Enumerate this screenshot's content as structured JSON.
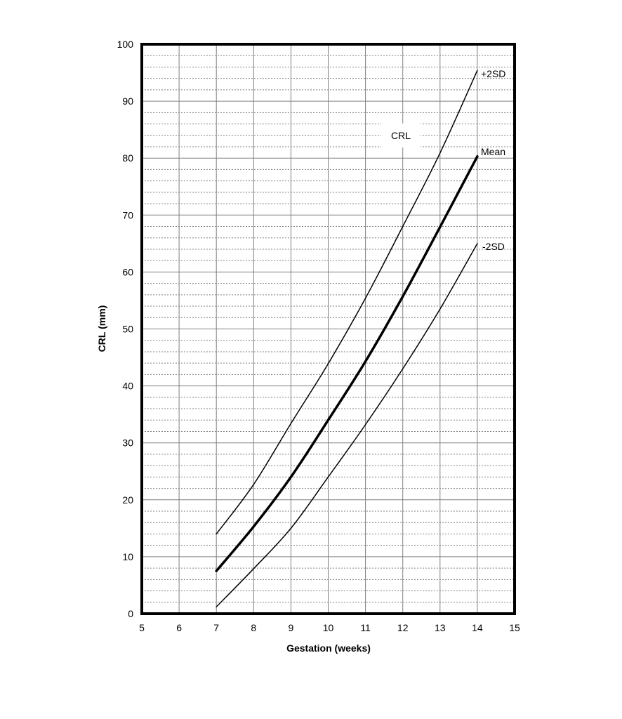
{
  "chart_data": {
    "type": "line",
    "title": "CRL",
    "xlabel": "Gestation (weeks)",
    "ylabel": "CRL (mm)",
    "xlim": [
      5,
      15
    ],
    "ylim": [
      0,
      100
    ],
    "x_ticks": [
      "5",
      "6",
      "7",
      "8",
      "9",
      "10",
      "11",
      "12",
      "13",
      "14",
      "15"
    ],
    "y_ticks": [
      "0",
      "10",
      "20",
      "30",
      "40",
      "50",
      "60",
      "70",
      "80",
      "90",
      "100"
    ],
    "grid": {
      "major_y": 10,
      "minor_y": 2,
      "major_x": 1,
      "minor_style": "dotted"
    },
    "legend_position": "inline-right",
    "x": [
      7,
      8,
      9,
      10,
      11,
      12,
      13,
      14
    ],
    "series": [
      {
        "name": "+2SD",
        "values": [
          14.0,
          22.7,
          33.4,
          43.9,
          55.4,
          68.0,
          80.9,
          95.4
        ],
        "stroke_width": 1.5
      },
      {
        "name": "Mean",
        "values": [
          7.5,
          15.3,
          24.0,
          34.0,
          44.3,
          55.7,
          67.9,
          80.3
        ],
        "stroke_width": 3.5
      },
      {
        "name": "-2SD",
        "values": [
          1.2,
          7.9,
          15.0,
          24.0,
          33.2,
          43.0,
          53.5,
          65.0
        ],
        "stroke_width": 1.5
      }
    ]
  },
  "labels": {
    "title": "CRL",
    "xlabel": "Gestation (weeks)",
    "ylabel": "CRL (mm)",
    "plus2sd": "+2SD",
    "mean": "Mean",
    "minus2sd": "-2SD"
  },
  "colors": {
    "line": "#000000",
    "major_grid": "#808080",
    "minor_grid": "#808080",
    "frame": "#000000",
    "background": "#ffffff"
  }
}
